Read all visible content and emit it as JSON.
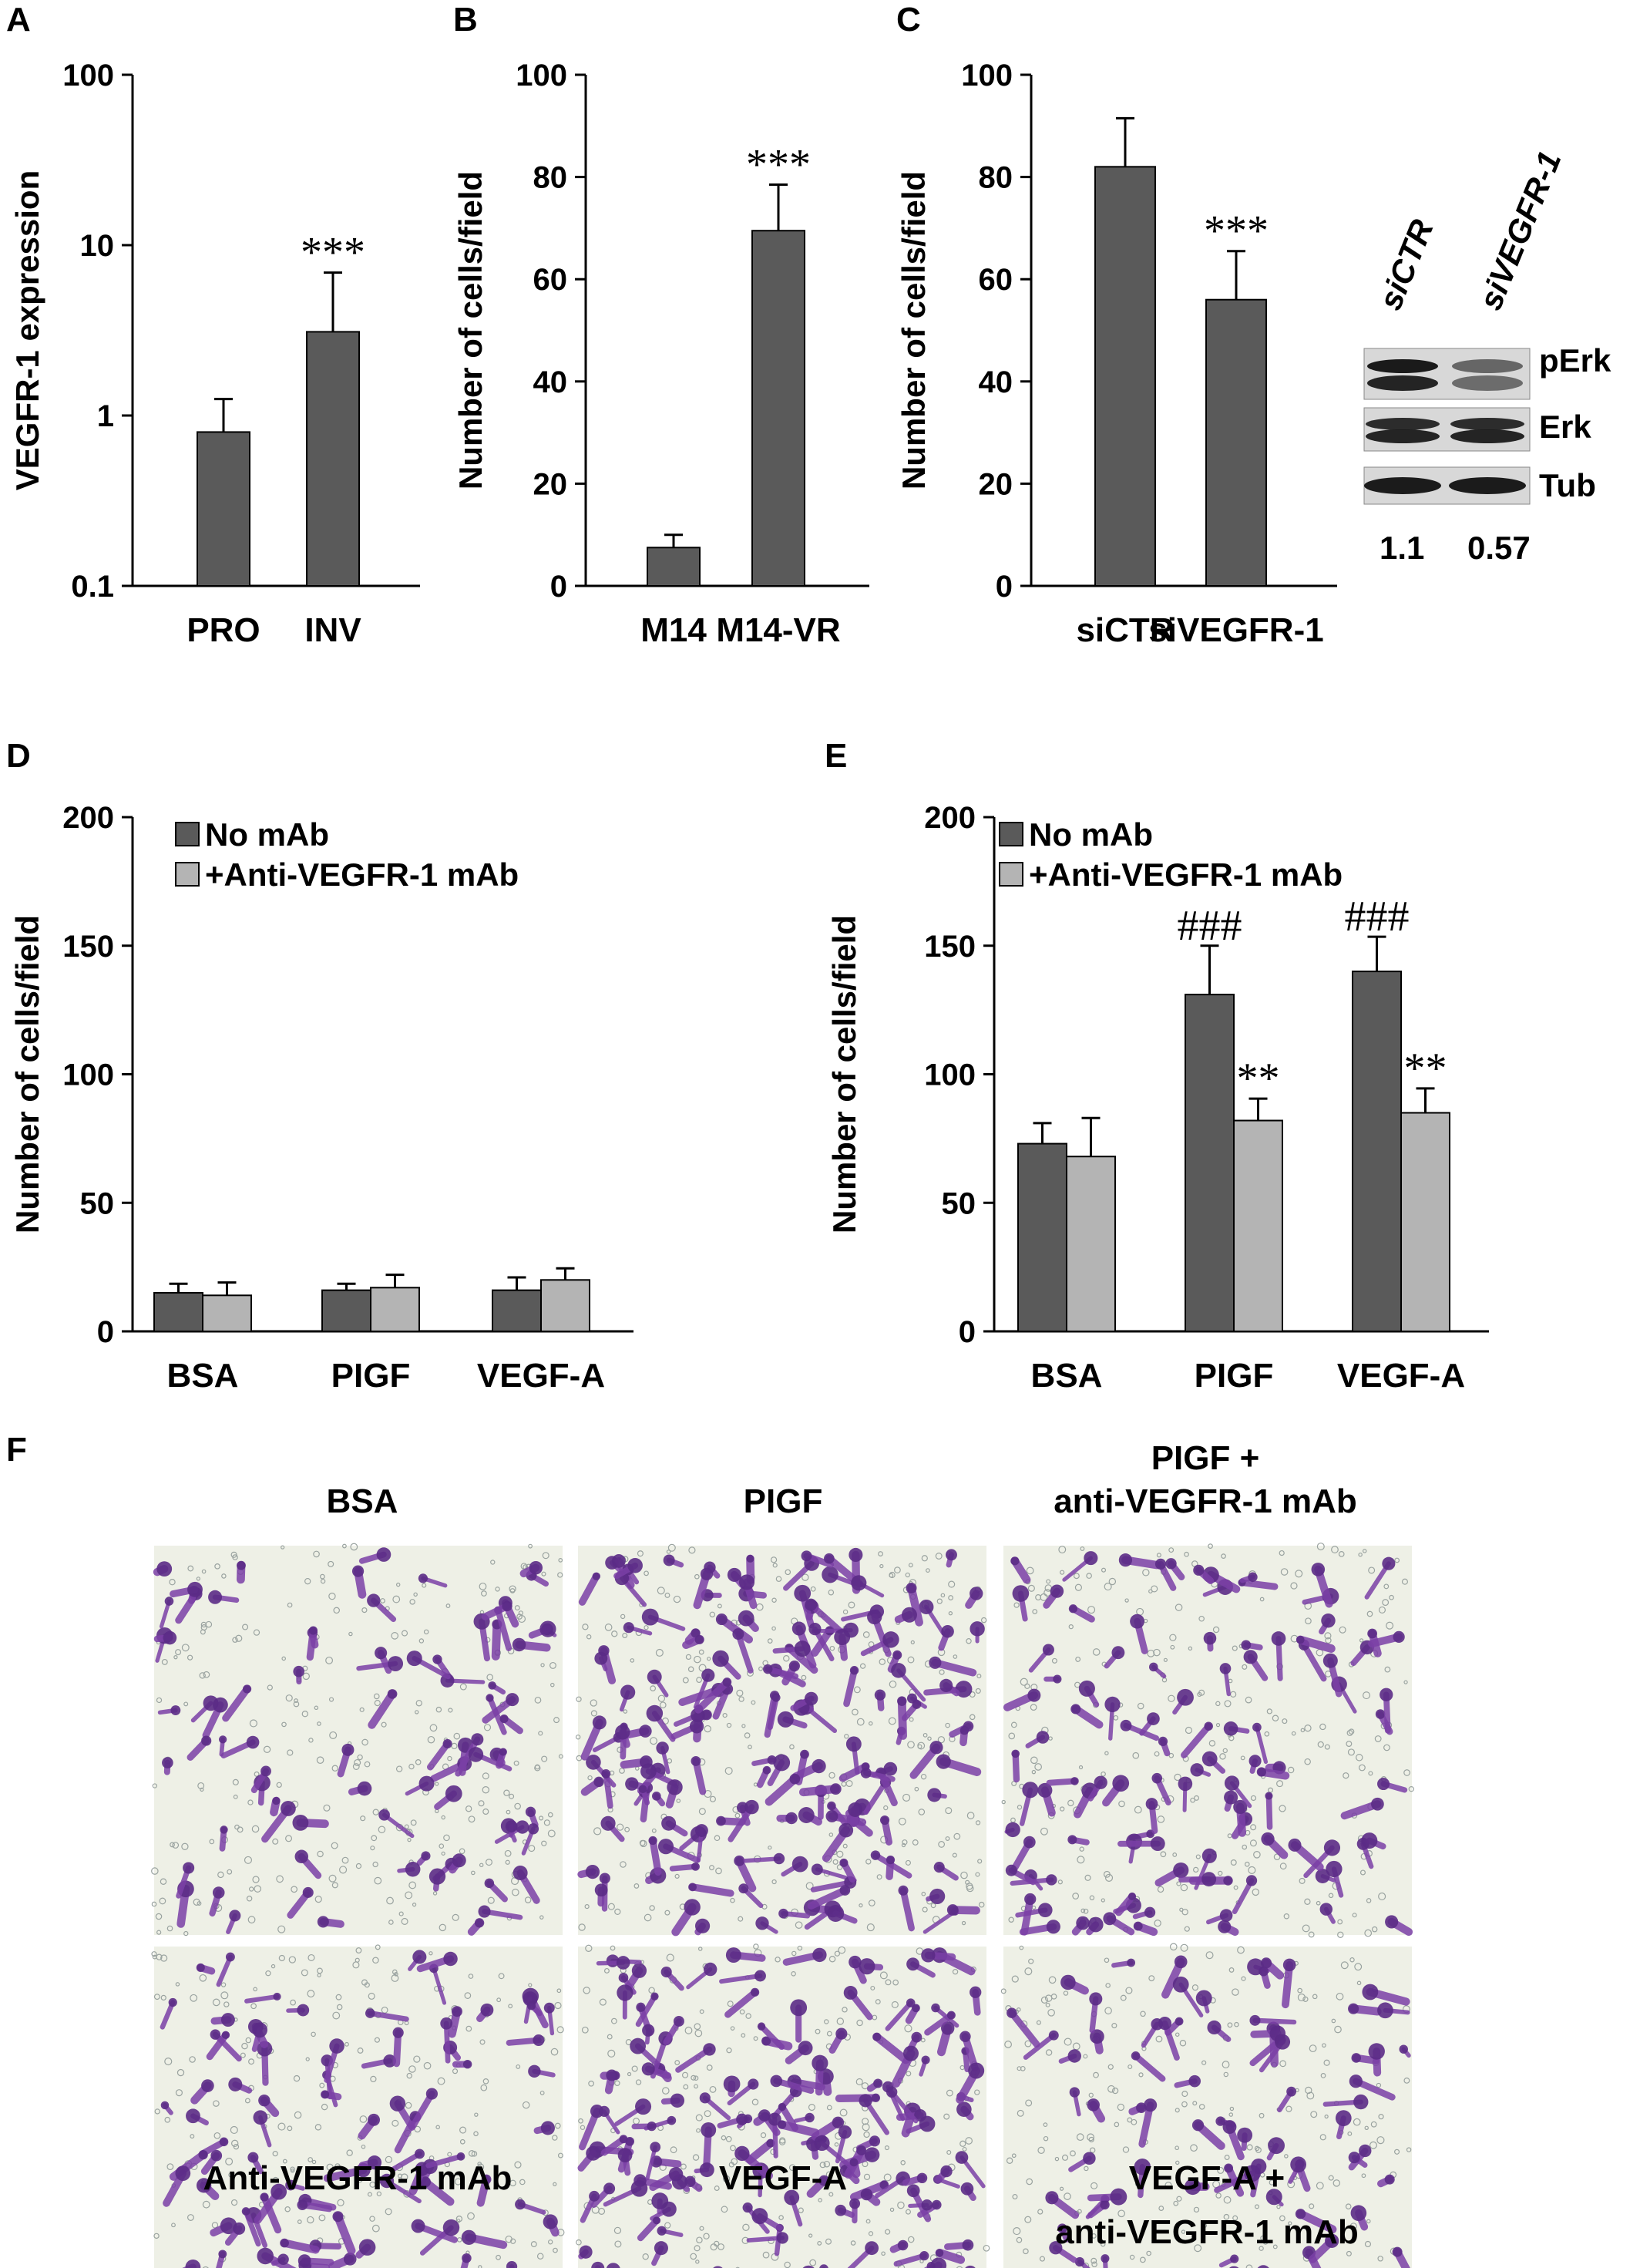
{
  "colors": {
    "dark_bar": "#5a5a5a",
    "light_bar": "#b4b4b4",
    "stain": "#7a3fa6",
    "axis": "#000000"
  },
  "panels": {
    "A": {
      "letter": "A"
    },
    "B": {
      "letter": "B"
    },
    "C": {
      "letter": "C"
    },
    "D": {
      "letter": "D"
    },
    "E": {
      "letter": "E"
    },
    "F": {
      "letter": "F"
    }
  },
  "chart_data": [
    {
      "id": "A",
      "type": "bar",
      "ylabel": "VEGFR-1 expression",
      "scale": "log",
      "ylim": [
        0.1,
        100
      ],
      "yticks": [
        "0.1",
        "1",
        "10",
        "100"
      ],
      "categories": [
        "PRO",
        "INV"
      ],
      "series": [
        {
          "values": [
            0.8,
            3.1
          ],
          "errors_upper": [
            1.25,
            6.9
          ]
        }
      ],
      "annotations": [
        "",
        "***"
      ]
    },
    {
      "id": "B",
      "type": "bar",
      "ylabel": "Number of cells/field",
      "ylim": [
        0,
        100
      ],
      "yticks": [
        "0",
        "20",
        "40",
        "60",
        "80",
        "100"
      ],
      "categories": [
        "M14",
        "M14-VR"
      ],
      "series": [
        {
          "values": [
            7.5,
            69.5
          ],
          "errors": [
            2.5,
            9
          ]
        }
      ],
      "annotations": [
        "",
        "***"
      ]
    },
    {
      "id": "C",
      "type": "bar",
      "ylabel": "Number of cells/field",
      "ylim": [
        0,
        100
      ],
      "yticks": [
        "0",
        "20",
        "40",
        "60",
        "80",
        "100"
      ],
      "categories": [
        "siCTR",
        "siVEGFR-1"
      ],
      "series": [
        {
          "values": [
            82,
            56
          ],
          "errors": [
            9.5,
            9.5
          ]
        }
      ],
      "annotations": [
        "",
        "***"
      ]
    },
    {
      "id": "D",
      "type": "bar",
      "ylabel": "Number of cells/field",
      "ylim": [
        0,
        200
      ],
      "yticks": [
        "0",
        "50",
        "100",
        "150",
        "200"
      ],
      "categories": [
        "BSA",
        "PIGF",
        "VEGF-A"
      ],
      "legend": [
        "No mAb",
        "+Anti-VEGFR-1 mAb"
      ],
      "series": [
        {
          "name": "No mAb",
          "values": [
            15,
            16,
            16
          ],
          "errors": [
            3.5,
            2.5,
            5
          ]
        },
        {
          "name": "+Anti-VEGFR-1 mAb",
          "values": [
            14,
            17,
            20
          ],
          "errors": [
            5,
            5,
            4.5
          ]
        }
      ],
      "annotations": []
    },
    {
      "id": "E",
      "type": "bar",
      "ylabel": "Number of cells/field",
      "ylim": [
        0,
        200
      ],
      "yticks": [
        "0",
        "50",
        "100",
        "150",
        "200"
      ],
      "categories": [
        "BSA",
        "PIGF",
        "VEGF-A"
      ],
      "legend": [
        "No mAb",
        "+Anti-VEGFR-1 mAb"
      ],
      "series": [
        {
          "name": "No mAb",
          "values": [
            73,
            131,
            140
          ],
          "errors": [
            8,
            19,
            13.5
          ]
        },
        {
          "name": "+Anti-VEGFR-1 mAb",
          "values": [
            68,
            82,
            85
          ],
          "errors": [
            15,
            8.5,
            9.5
          ]
        }
      ],
      "annotations": {
        "No mAb": [
          "",
          "###",
          "###"
        ],
        "+Anti-VEGFR-1 mAb": [
          "",
          "**",
          "**"
        ]
      }
    }
  ],
  "blot": {
    "lanes": [
      "siCTR",
      "siVEGFR-1"
    ],
    "rows": [
      "pErk",
      "Erk",
      "Tub"
    ],
    "quant": [
      "1.1",
      "0.57"
    ]
  },
  "micrographs": {
    "top_labels": [
      "BSA",
      "PIGF",
      "PIGF +",
      "anti-VEGFR-1 mAb"
    ],
    "bottom_labels": [
      "Anti-VEGFR-1 mAb",
      "VEGF-A",
      "VEGF-A +",
      "anti-VEGFR-1 mAb"
    ],
    "density": [
      0.35,
      0.9,
      0.5,
      0.45,
      0.95,
      0.4
    ]
  }
}
